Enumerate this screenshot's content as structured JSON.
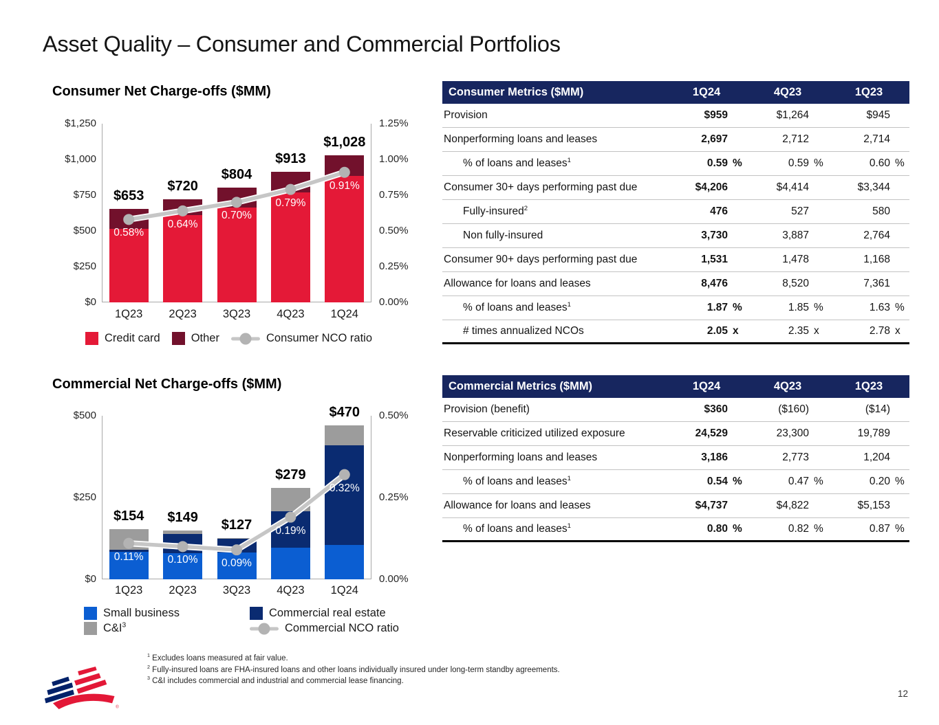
{
  "title": "Asset Quality – Consumer and Commercial Portfolios",
  "page_number": "12",
  "icons": {
    "logo": "bank-of-america-flag-logo"
  },
  "colors": {
    "header_navy": "#17265F",
    "credit_card_red": "#E41937",
    "other_maroon": "#72112C",
    "small_business_blue": "#0B5ED2",
    "commercial_real_estate_navy": "#0A2B71",
    "ci_gray": "#9C9C9C",
    "nco_line_gray": "#C6C6C6"
  },
  "chart_data": [
    {
      "id": "consumer-net-charge-offs",
      "type": "bar",
      "subtype": "stacked-bars-with-line",
      "title": "Consumer Net Charge-offs ($MM)",
      "categories": [
        "1Q23",
        "2Q23",
        "3Q23",
        "4Q23",
        "1Q24"
      ],
      "series": [
        {
          "name": "Credit card",
          "color": "#E41937",
          "values": [
            515,
            610,
            665,
            770,
            885
          ]
        },
        {
          "name": "Other",
          "color": "#72112C",
          "values": [
            138,
            110,
            139,
            143,
            143
          ]
        }
      ],
      "totals": [
        653,
        720,
        804,
        913,
        1028
      ],
      "total_labels": [
        "$653",
        "$720",
        "$804",
        "$913",
        "$1,028"
      ],
      "line_series": {
        "name": "Consumer NCO ratio",
        "color": "#C6C6C6",
        "dot_color": "#B3B3B3",
        "values": [
          0.58,
          0.64,
          0.7,
          0.79,
          0.91
        ],
        "labels": [
          "0.58%",
          "0.64%",
          "0.70%",
          "0.79%",
          "0.91%"
        ]
      },
      "left_axis": {
        "min": 0,
        "max": 1250,
        "ticks": [
          "$0",
          "$250",
          "$500",
          "$750",
          "$1,000",
          "$1,250"
        ]
      },
      "right_axis": {
        "min": 0,
        "max": 1.25,
        "ticks": [
          "0.00%",
          "0.25%",
          "0.50%",
          "0.75%",
          "1.00%",
          "1.25%"
        ]
      },
      "legend": [
        {
          "label": "Credit card",
          "type": "swatch",
          "color": "#E41937"
        },
        {
          "label": "Other",
          "type": "swatch",
          "color": "#72112C"
        },
        {
          "label": "Consumer NCO ratio",
          "type": "line",
          "color": "#C6C6C6"
        }
      ]
    },
    {
      "id": "commercial-net-charge-offs",
      "type": "bar",
      "subtype": "stacked-bars-with-line",
      "title": "Commercial Net Charge-offs ($MM)",
      "categories": [
        "1Q23",
        "2Q23",
        "3Q23",
        "4Q23",
        "1Q24"
      ],
      "series": [
        {
          "name": "Small business",
          "color": "#0B5ED2",
          "values": [
            85,
            80,
            82,
            97,
            105
          ]
        },
        {
          "name": "Commercial real estate",
          "color": "#0A2B71",
          "values": [
            6,
            58,
            41,
            112,
            305
          ]
        },
        {
          "name": "C&I",
          "color": "#9C9C9C",
          "values": [
            63,
            11,
            4,
            70,
            60
          ]
        }
      ],
      "totals": [
        154,
        149,
        127,
        279,
        470
      ],
      "total_labels": [
        "$154",
        "$149",
        "$127",
        "$279",
        "$470"
      ],
      "line_series": {
        "name": "Commercial NCO ratio",
        "color": "#C6C6C6",
        "dot_color": "#B3B3B3",
        "values": [
          0.11,
          0.1,
          0.09,
          0.19,
          0.32
        ],
        "labels": [
          "0.11%",
          "0.10%",
          "0.09%",
          "0.19%",
          "0.32%"
        ]
      },
      "left_axis": {
        "min": 0,
        "max": 500,
        "ticks": [
          "$0",
          "$250",
          "$500"
        ]
      },
      "right_axis": {
        "min": 0,
        "max": 0.5,
        "ticks": [
          "0.00%",
          "0.25%",
          "0.50%"
        ]
      },
      "legend": [
        {
          "label": "Small business",
          "type": "swatch",
          "color": "#0B5ED2"
        },
        {
          "label": "Commercial real estate",
          "type": "swatch",
          "color": "#0A2B71"
        },
        {
          "label": "C&I",
          "sup": "3",
          "type": "swatch",
          "color": "#9C9C9C"
        },
        {
          "label": "Commercial NCO ratio",
          "type": "line",
          "color": "#C6C6C6"
        }
      ]
    }
  ],
  "tables": {
    "consumer": {
      "title": "Consumer Metrics ($MM)",
      "columns": [
        "1Q24",
        "4Q23",
        "1Q23"
      ],
      "rows": [
        {
          "label": "Provision",
          "cells": [
            {
              "v": "$959"
            },
            {
              "v": "$1,264"
            },
            {
              "v": "$945"
            }
          ]
        },
        {
          "label": "Nonperforming loans and leases",
          "cells": [
            {
              "v": "2,697"
            },
            {
              "v": "2,712"
            },
            {
              "v": "2,714"
            }
          ]
        },
        {
          "label": "% of loans and leases",
          "sup": "1",
          "indent": 1,
          "cells": [
            {
              "v": "0.59",
              "u": "%"
            },
            {
              "v": "0.59",
              "u": "%"
            },
            {
              "v": "0.60",
              "u": "%"
            }
          ]
        },
        {
          "label": "Consumer 30+ days performing past due",
          "cells": [
            {
              "v": "$4,206"
            },
            {
              "v": "$4,414"
            },
            {
              "v": "$3,344"
            }
          ]
        },
        {
          "label": "Fully-insured",
          "sup": "2",
          "indent": 1,
          "cells": [
            {
              "v": "476"
            },
            {
              "v": "527"
            },
            {
              "v": "580"
            }
          ]
        },
        {
          "label": "Non fully-insured",
          "indent": 1,
          "cells": [
            {
              "v": "3,730"
            },
            {
              "v": "3,887"
            },
            {
              "v": "2,764"
            }
          ]
        },
        {
          "label": "Consumer 90+ days performing past due",
          "cells": [
            {
              "v": "1,531"
            },
            {
              "v": "1,478"
            },
            {
              "v": "1,168"
            }
          ]
        },
        {
          "label": "Allowance for loans and leases",
          "cells": [
            {
              "v": "8,476"
            },
            {
              "v": "8,520"
            },
            {
              "v": "7,361"
            }
          ]
        },
        {
          "label": "% of loans and leases",
          "sup": "1",
          "indent": 1,
          "cells": [
            {
              "v": "1.87",
              "u": "%"
            },
            {
              "v": "1.85",
              "u": "%"
            },
            {
              "v": "1.63",
              "u": "%"
            }
          ]
        },
        {
          "label": "# times annualized NCOs",
          "indent": 1,
          "cells": [
            {
              "v": "2.05",
              "u": "x"
            },
            {
              "v": "2.35",
              "u": "x"
            },
            {
              "v": "2.78",
              "u": "x"
            }
          ]
        }
      ]
    },
    "commercial": {
      "title": "Commercial Metrics ($MM)",
      "columns": [
        "1Q24",
        "4Q23",
        "1Q23"
      ],
      "rows": [
        {
          "label": "Provision (benefit)",
          "cells": [
            {
              "v": "$360"
            },
            {
              "v": "($160)"
            },
            {
              "v": "($14)"
            }
          ]
        },
        {
          "label": "Reservable criticized utilized exposure",
          "cells": [
            {
              "v": "24,529"
            },
            {
              "v": "23,300"
            },
            {
              "v": "19,789"
            }
          ]
        },
        {
          "label": "Nonperforming loans and leases",
          "cells": [
            {
              "v": "3,186"
            },
            {
              "v": "2,773"
            },
            {
              "v": "1,204"
            }
          ]
        },
        {
          "label": "% of loans and leases",
          "sup": "1",
          "indent": 1,
          "cells": [
            {
              "v": "0.54",
              "u": "%"
            },
            {
              "v": "0.47",
              "u": "%"
            },
            {
              "v": "0.20",
              "u": "%"
            }
          ]
        },
        {
          "label": "Allowance for loans and leases",
          "cells": [
            {
              "v": "$4,737"
            },
            {
              "v": "$4,822"
            },
            {
              "v": "$5,153"
            }
          ]
        },
        {
          "label": "% of loans and leases",
          "sup": "1",
          "indent": 1,
          "cells": [
            {
              "v": "0.80",
              "u": "%"
            },
            {
              "v": "0.82",
              "u": "%"
            },
            {
              "v": "0.87",
              "u": "%"
            }
          ]
        }
      ]
    }
  },
  "footnotes": [
    {
      "sup": "1",
      "text": "Excludes loans measured at fair value."
    },
    {
      "sup": "2",
      "text": "Fully-insured loans are FHA-insured loans and other loans individually insured under long-term standby agreements."
    },
    {
      "sup": "3",
      "text": "C&I includes commercial and industrial and commercial lease financing."
    }
  ]
}
